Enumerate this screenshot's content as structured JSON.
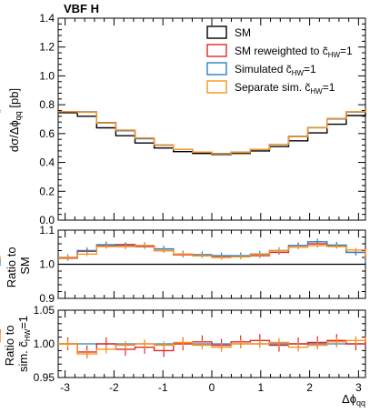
{
  "figure": {
    "label": "VBF H",
    "xlabel_main": "Δϕ",
    "xlabel_sub": "qq"
  },
  "chart_data": [
    {
      "type": "line",
      "panel": "main",
      "ylabel_main": "dσ/Δϕ",
      "ylabel_sub": "qq",
      "ylabel_unit": " [pb]",
      "xlim": [
        -3.1416,
        3.1416
      ],
      "ylim": [
        0,
        1.4
      ],
      "yticks": [
        0,
        0.2,
        0.4,
        0.6,
        0.8,
        1.0,
        1.2,
        1.4
      ],
      "ytick_labels": [
        "0.0",
        "0.2",
        "0.4",
        "0.6",
        "0.8",
        "1.0",
        "1.2",
        "1.4"
      ],
      "legend_position": "top-right",
      "bin_edges": [
        -3.1416,
        -2.7489,
        -2.3562,
        -1.9635,
        -1.5708,
        -1.1781,
        -0.7854,
        -0.3927,
        0,
        0.3927,
        0.7854,
        1.1781,
        1.5708,
        1.9635,
        2.3562,
        2.7489,
        3.1416
      ],
      "series": [
        {
          "name": "SM",
          "color": "#000000",
          "values": [
            0.745,
            0.72,
            0.64,
            0.585,
            0.535,
            0.5,
            0.475,
            0.462,
            0.455,
            0.462,
            0.48,
            0.51,
            0.55,
            0.605,
            0.665,
            0.725,
            0.75
          ]
        },
        {
          "name": "SM reweighted to ",
          "name_tail": "=1",
          "color": "#e3262c",
          "values": [
            0.752,
            0.75,
            0.675,
            0.62,
            0.565,
            0.52,
            0.49,
            0.472,
            0.462,
            0.47,
            0.49,
            0.525,
            0.58,
            0.642,
            0.702,
            0.75,
            0.76
          ]
        },
        {
          "name": "Simulated ",
          "name_tail": "=1",
          "color": "#2f7fc1",
          "values": [
            0.752,
            0.75,
            0.675,
            0.62,
            0.565,
            0.52,
            0.49,
            0.472,
            0.462,
            0.47,
            0.49,
            0.525,
            0.58,
            0.642,
            0.702,
            0.75,
            0.76
          ]
        },
        {
          "name": "Separate sim. ",
          "name_tail": "=1",
          "color": "#f7941d",
          "values": [
            0.752,
            0.748,
            0.672,
            0.625,
            0.57,
            0.522,
            0.49,
            0.472,
            0.46,
            0.47,
            0.49,
            0.525,
            0.578,
            0.64,
            0.705,
            0.752,
            0.762
          ]
        }
      ]
    },
    {
      "type": "line",
      "panel": "ratio_sm",
      "ylabel_line1": "Ratio to",
      "ylabel_line2": "SM",
      "ylim": [
        0.9,
        1.1
      ],
      "yticks": [
        0.9,
        1.0,
        1.1
      ],
      "ytick_labels": [
        "0.9",
        "1.0",
        "1.1"
      ],
      "reference": 1.0,
      "series": [
        {
          "name": "SM reweighted to ",
          "name_tail": "=1",
          "color": "#e3262c",
          "values": [
            1.018,
            1.038,
            1.055,
            1.058,
            1.052,
            1.04,
            1.028,
            1.025,
            1.022,
            1.022,
            1.025,
            1.035,
            1.055,
            1.06,
            1.055,
            1.035,
            1.012
          ]
        },
        {
          "name": "Simulated ",
          "name_tail": "=1",
          "color": "#2f7fc1",
          "values": [
            1.02,
            1.04,
            1.057,
            1.054,
            1.055,
            1.045,
            1.03,
            1.028,
            1.025,
            1.025,
            1.03,
            1.04,
            1.055,
            1.066,
            1.056,
            1.035,
            1.005
          ]
        },
        {
          "name": "Separate sim. ",
          "name_tail": "=1",
          "color": "#f7941d",
          "values": [
            1.02,
            1.03,
            1.052,
            1.052,
            1.055,
            1.04,
            1.03,
            1.025,
            1.02,
            1.022,
            1.028,
            1.04,
            1.05,
            1.055,
            1.052,
            1.042,
            1.018
          ]
        }
      ]
    },
    {
      "type": "line",
      "panel": "ratio_sim",
      "ylabel_line1": "Ratio to",
      "ylabel_line2_pre": "sim. ",
      "ylabel_line2_post": "=1",
      "ylim": [
        0.95,
        1.05
      ],
      "yticks": [
        0.95,
        1.0,
        1.05
      ],
      "ytick_labels": [
        "0.95",
        "1.00",
        "1.05"
      ],
      "xticks": [
        -3,
        -2,
        -1,
        0,
        1,
        2,
        3
      ],
      "xtick_labels": [
        "-3",
        "-2",
        "-1",
        "0",
        "1",
        "2",
        "3"
      ],
      "reference": 1.0,
      "series": [
        {
          "name": "Simulated ",
          "name_tail": "=1",
          "color": "#2f7fc1",
          "values": [
            1.0,
            1.0,
            1.0,
            1.0,
            1.0,
            1.0,
            1.0,
            1.0,
            1.0,
            1.0,
            1.0,
            1.0,
            1.0,
            1.0,
            1.0,
            1.0,
            1.0
          ]
        },
        {
          "name": "SM reweighted to ",
          "name_tail": "=1",
          "color": "#e3262c",
          "values": [
            1.0,
            0.988,
            1.0,
            0.992,
            0.995,
            0.99,
            1.0,
            1.003,
            0.998,
            1.003,
            1.005,
            0.998,
            1.0,
            1.002,
            1.005,
            1.0,
            1.012
          ]
        },
        {
          "name": "Separate sim. ",
          "name_tail": "=1",
          "color": "#f7941d",
          "values": [
            1.0,
            0.985,
            0.992,
            0.998,
            1.0,
            0.998,
            1.002,
            0.998,
            0.995,
            1.0,
            1.0,
            1.002,
            0.995,
            0.998,
            1.003,
            1.005,
            1.01
          ]
        }
      ]
    }
  ],
  "legend": {
    "c_symbol": "c̃",
    "c_subscript": "HW"
  }
}
